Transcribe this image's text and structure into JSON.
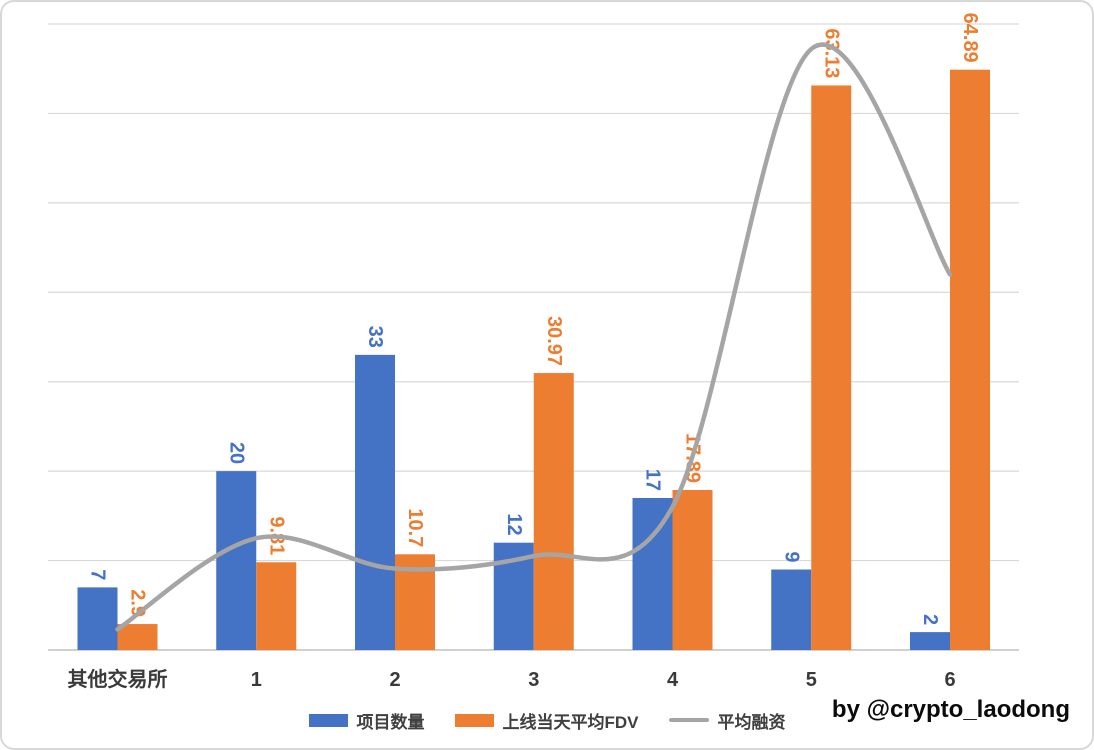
{
  "watermark": "by @crypto_laodong",
  "colors": {
    "bar_projects": "#4472C4",
    "bar_fdv": "#ED7D31",
    "line_funding": "#A5A5A5",
    "gridline": "#D9D9D9",
    "axis_line": "#C0C0C0",
    "category_text": "#3A3A3A",
    "legend_text": "#404040"
  },
  "chart_data": {
    "type": "bar",
    "subtype": "combo-clustered-bar-with-smooth-line",
    "categories": [
      "其他交易所",
      "1",
      "2",
      "3",
      "4",
      "5",
      "6"
    ],
    "series": [
      {
        "name": "项目数量",
        "type": "bar",
        "color": "#4472C4",
        "values": [
          7,
          20,
          33,
          12,
          17,
          9,
          2
        ],
        "data_labels": [
          "7",
          "20",
          "33",
          "12",
          "17",
          "9",
          "2"
        ]
      },
      {
        "name": "上线当天平均FDV",
        "type": "bar",
        "color": "#ED7D31",
        "values": [
          2.9,
          9.81,
          10.7,
          30.97,
          17.89,
          63.13,
          64.89
        ],
        "data_labels": [
          "2.9",
          "9.81",
          "10.7",
          "30.97",
          "17.89",
          "63.13",
          "64.89"
        ]
      },
      {
        "name": "平均融资",
        "type": "line",
        "smooth": true,
        "color": "#A5A5A5",
        "estimated": true,
        "values": [
          2.3,
          12.5,
          9.1,
          10.5,
          16.0,
          67.2,
          42.0
        ]
      }
    ],
    "ylim": [
      0,
      70
    ],
    "y_gridline_step": 10,
    "y_axis_tick_labels_visible": false,
    "grid": true,
    "data_label_rotation_deg": 90,
    "legend_position": "bottom"
  }
}
